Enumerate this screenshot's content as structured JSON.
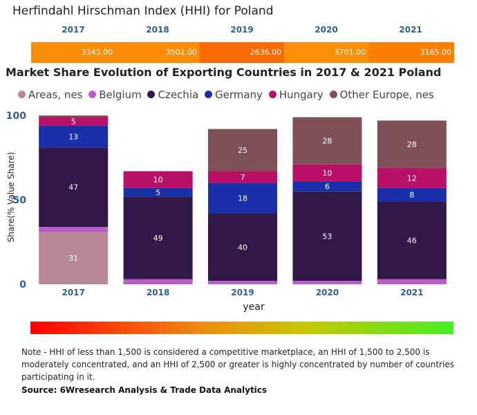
{
  "hhi": {
    "title": "Herfindahl Hirschman Index (HHI) for Poland",
    "years": [
      "2017",
      "2018",
      "2019",
      "2020",
      "2021"
    ],
    "values": [
      "3343.00",
      "3502.00",
      "2636.00",
      "3701.00",
      "3165.00"
    ],
    "colors": [
      "#f98d08",
      "#fc8c06",
      "#fb6a02",
      "#fc8e08",
      "#fd7f02"
    ]
  },
  "chart_title": "Market Share Evolution of Exporting Countries in 2017 & 2021 Poland",
  "chart_data": {
    "type": "bar",
    "stacked": true,
    "categories": [
      "2017",
      "2018",
      "2019",
      "2020",
      "2021"
    ],
    "xlabel": "year",
    "ylabel": "Share(% Value Share)",
    "ylim": [
      0,
      100
    ],
    "yticks": [
      "0",
      "50",
      "100"
    ],
    "series": [
      {
        "name": "Areas, nes",
        "color": "#b98897",
        "values": [
          31,
          0,
          0,
          0,
          0
        ],
        "labels": [
          "31",
          "",
          "",
          "",
          ""
        ]
      },
      {
        "name": "Belgium",
        "color": "#ba5cc9",
        "values": [
          3,
          3,
          2,
          2,
          3
        ],
        "labels": [
          "",
          "",
          "",
          "",
          ""
        ]
      },
      {
        "name": "Czechia",
        "color": "#311848",
        "values": [
          47,
          49,
          40,
          53,
          46
        ],
        "labels": [
          "47",
          "49",
          "40",
          "53",
          "46"
        ]
      },
      {
        "name": "Germany",
        "color": "#1930a9",
        "values": [
          13,
          5,
          18,
          6,
          8
        ],
        "labels": [
          "13",
          "5",
          "18",
          "6",
          "8"
        ]
      },
      {
        "name": "Hungary",
        "color": "#b81067",
        "values": [
          5,
          10,
          7,
          10,
          12
        ],
        "labels": [
          "5",
          "10",
          "7",
          "10",
          "12"
        ]
      },
      {
        "name": "Other Europe, nes",
        "color": "#7f5058",
        "values": [
          1,
          0,
          25,
          28,
          28
        ],
        "labels": [
          "",
          "",
          "25",
          "28",
          "28"
        ]
      }
    ],
    "legend_position": "top"
  },
  "note": "Note - HHI of less than 1,500 is considered a competitive marketplace, an HHI of 1,500 to 2,500 is moderately concentrated, and an HHI of 2,500 or greater is highly concentrated by number of countries participating in it.",
  "source": "Source: 6Wresearch Analysis & Trade Data Analytics"
}
